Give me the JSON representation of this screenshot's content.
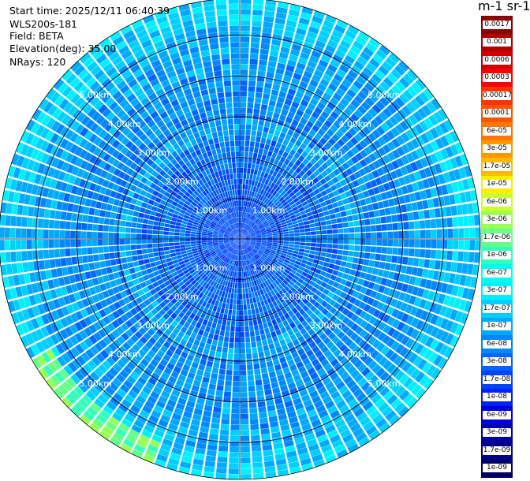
{
  "header": {
    "start_time": "Start time: 2025/12/11 06:40:39",
    "instrument": "WLS200s-181",
    "field": "Field: BETA",
    "elevation": "Elevation(deg): 35.00",
    "nrays": "NRays: 120"
  },
  "plot": {
    "n_rays": 120,
    "range_rings": [
      {
        "value": 1,
        "label": "1.00km"
      },
      {
        "value": 2,
        "label": "2.00km"
      },
      {
        "value": 3,
        "label": "3.00km"
      },
      {
        "value": 4,
        "label": "4.00km"
      },
      {
        "value": 5,
        "label": "5.00km"
      }
    ],
    "max_range_km": 5.9
  },
  "colorbar": {
    "title": "m-1 sr-1",
    "levels": [
      {
        "label": "0.0017",
        "color": "#8b0000"
      },
      {
        "label": "0.001",
        "color": "#b00000"
      },
      {
        "label": "0.0006",
        "color": "#d40000"
      },
      {
        "label": "0.0003",
        "color": "#ff0000"
      },
      {
        "label": "0.00017",
        "color": "#ff3300"
      },
      {
        "label": "0.0001",
        "color": "#ff5500"
      },
      {
        "label": "6e-05",
        "color": "#ff7700"
      },
      {
        "label": "3e-05",
        "color": "#ff9900"
      },
      {
        "label": "1.7e-05",
        "color": "#ffbb00"
      },
      {
        "label": "1e-05",
        "color": "#ffee00"
      },
      {
        "label": "6e-06",
        "color": "#ccff33"
      },
      {
        "label": "3e-06",
        "color": "#99ff55"
      },
      {
        "label": "1.7e-06",
        "color": "#66ff88"
      },
      {
        "label": "1e-06",
        "color": "#33ffbb"
      },
      {
        "label": "6e-07",
        "color": "#00ffee"
      },
      {
        "label": "3e-07",
        "color": "#00f0ff"
      },
      {
        "label": "1.7e-07",
        "color": "#00d0ff"
      },
      {
        "label": "1e-07",
        "color": "#00a8ff"
      },
      {
        "label": "6e-08",
        "color": "#0088ff"
      },
      {
        "label": "3e-08",
        "color": "#0066ff"
      },
      {
        "label": "1.7e-08",
        "color": "#0044ff"
      },
      {
        "label": "1e-08",
        "color": "#0022ee"
      },
      {
        "label": "6e-09",
        "color": "#0000dd"
      },
      {
        "label": "3e-09",
        "color": "#0000aa"
      },
      {
        "label": "1.7e-09",
        "color": "#000088"
      },
      {
        "label": "1e-09",
        "color": "#000066"
      }
    ]
  }
}
